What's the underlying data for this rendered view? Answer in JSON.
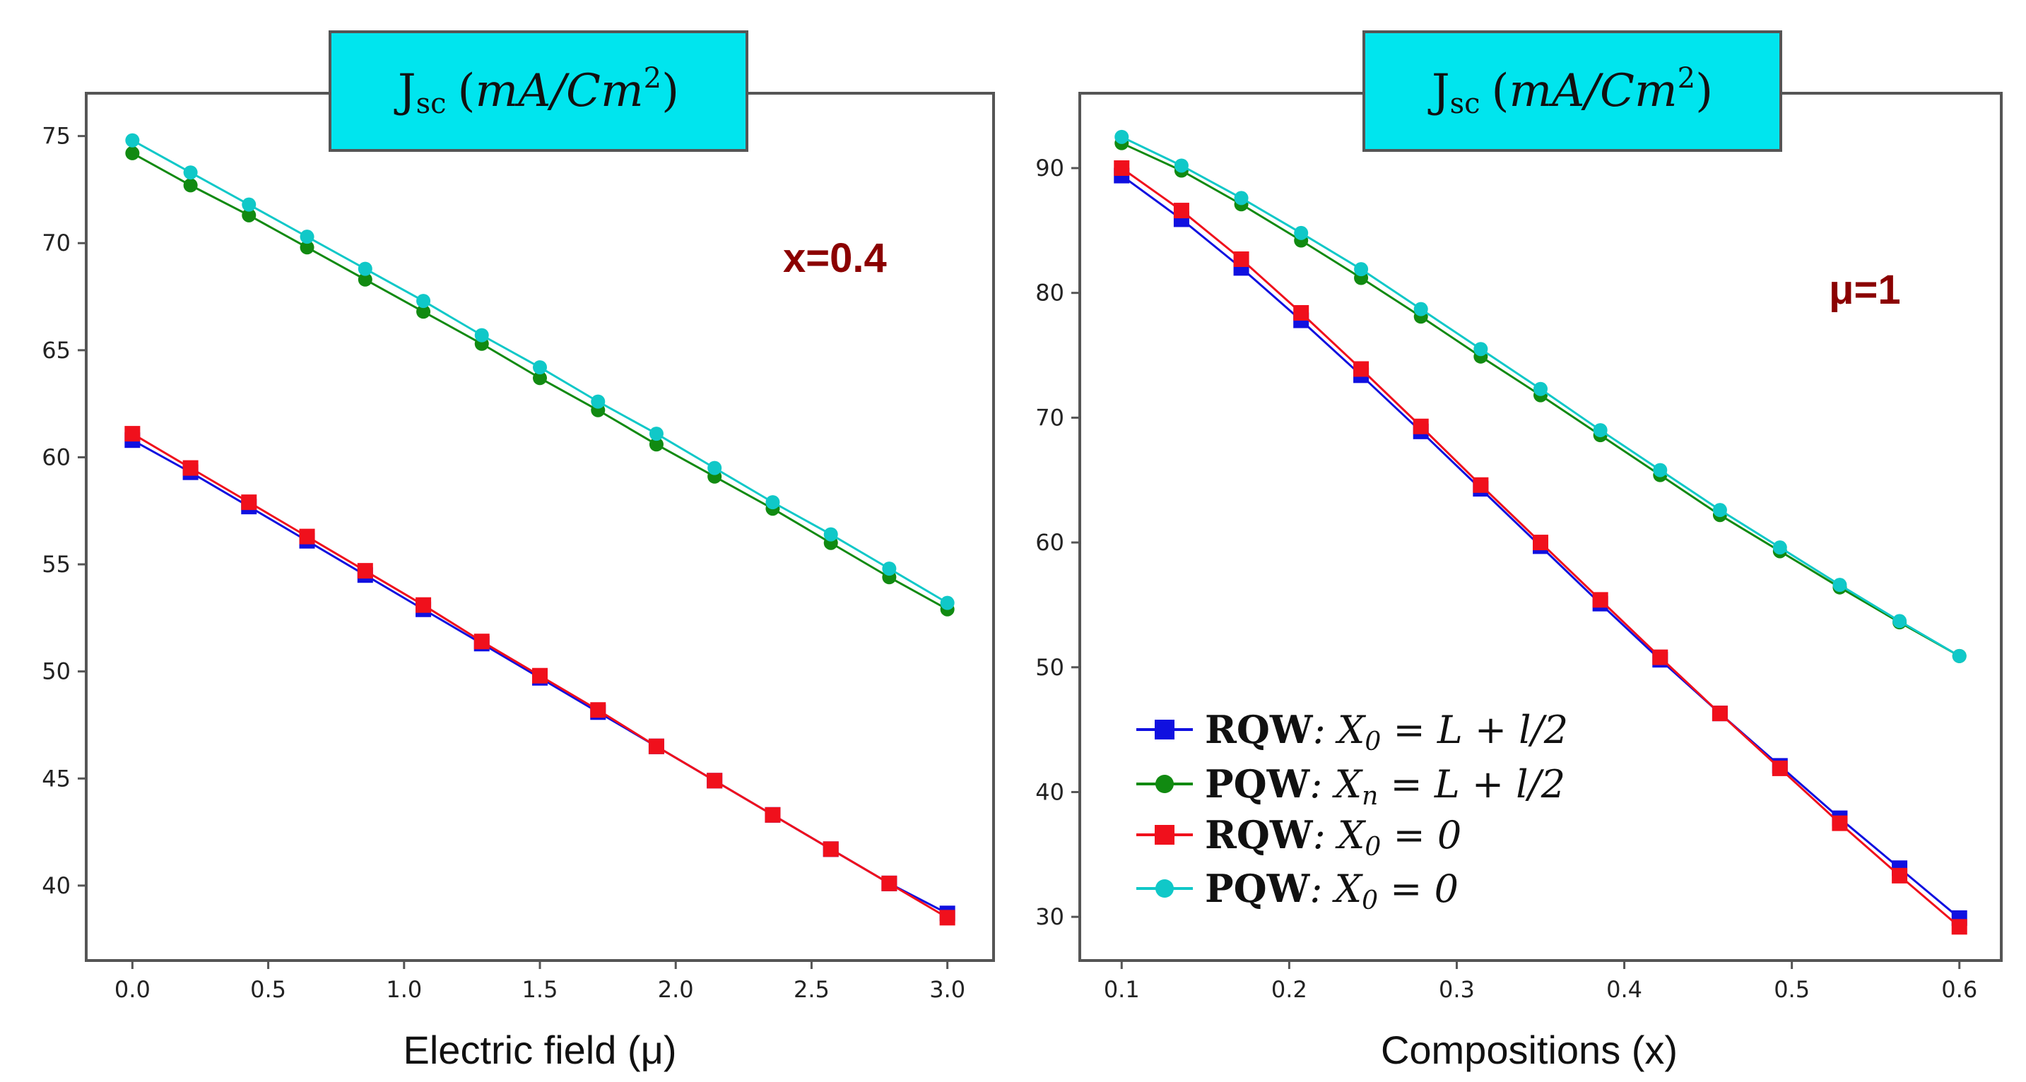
{
  "colors": {
    "rqw_l": "#1010e0",
    "pqw_l": "#118a11",
    "rqw_0": "#f0101c",
    "pqw_0": "#10c8c8",
    "title_box_fill": "#00e5ee",
    "annotation": "#8b0000"
  },
  "legend": [
    {
      "key": "rqw_l",
      "marker": "square",
      "bold": "RQW",
      "formula": ": X",
      "sub": "0",
      "rest": " = L + l/2"
    },
    {
      "key": "pqw_l",
      "marker": "circle",
      "bold": "PQW",
      "formula": ": X",
      "sub": "n",
      "rest": " = L + l/2"
    },
    {
      "key": "rqw_0",
      "marker": "square",
      "bold": "RQW",
      "formula": ": X",
      "sub": "0",
      "rest": " = 0"
    },
    {
      "key": "pqw_0",
      "marker": "circle",
      "bold": "PQW",
      "formula": ": X",
      "sub": "0",
      "rest": " = 0"
    }
  ],
  "chart_data": [
    {
      "type": "line",
      "title": {
        "main": "J",
        "sub": "sc",
        "unit_open": "(",
        "unit": "mA/Cm",
        "sup": "2",
        "unit_close": ")"
      },
      "xlabel": "Electric field (μ)",
      "ylabel": "",
      "annotation": "x=0.4",
      "xlim": [
        -0.17,
        3.17
      ],
      "ylim": [
        36.5,
        77
      ],
      "xticks": [
        0.0,
        0.5,
        1.0,
        1.5,
        2.0,
        2.5,
        3.0
      ],
      "xtick_labels": [
        "0.0",
        "0.5",
        "1.0",
        "1.5",
        "2.0",
        "2.5",
        "3.0"
      ],
      "yticks": [
        40,
        45,
        50,
        55,
        60,
        65,
        70,
        75
      ],
      "ytick_labels": [
        "40",
        "45",
        "50",
        "55",
        "60",
        "65",
        "70",
        "75"
      ],
      "x": [
        0.0,
        0.214,
        0.429,
        0.643,
        0.857,
        1.071,
        1.286,
        1.5,
        1.714,
        1.929,
        2.143,
        2.357,
        2.571,
        2.786,
        3.0
      ],
      "series": [
        {
          "name": "RQW: X0 = L + l/2",
          "key": "rqw_l",
          "marker": "square",
          "values": [
            60.8,
            59.3,
            57.7,
            56.1,
            54.5,
            52.9,
            51.3,
            49.7,
            48.1,
            46.5,
            44.9,
            43.3,
            41.7,
            40.1,
            38.7
          ]
        },
        {
          "name": "PQW: Xn = L + l/2",
          "key": "pqw_l",
          "marker": "circle",
          "values": [
            74.2,
            72.7,
            71.3,
            69.8,
            68.3,
            66.8,
            65.3,
            63.7,
            62.2,
            60.6,
            59.1,
            57.6,
            56.0,
            54.4,
            52.9
          ]
        },
        {
          "name": "RQW: X0 = 0",
          "key": "rqw_0",
          "marker": "square",
          "values": [
            61.1,
            59.5,
            57.9,
            56.3,
            54.7,
            53.1,
            51.4,
            49.8,
            48.2,
            46.5,
            44.9,
            43.3,
            41.7,
            40.1,
            38.5
          ]
        },
        {
          "name": "PQW: X0 = 0",
          "key": "pqw_0",
          "marker": "circle",
          "values": [
            74.8,
            73.3,
            71.8,
            70.3,
            68.8,
            67.3,
            65.7,
            64.2,
            62.6,
            61.1,
            59.5,
            57.9,
            56.4,
            54.8,
            53.2
          ]
        }
      ]
    },
    {
      "type": "line",
      "title": {
        "main": "J",
        "sub": "sc",
        "unit_open": "(",
        "unit": "mA/Cm",
        "sup": "2",
        "unit_close": ")"
      },
      "xlabel": "Compositions (x)",
      "ylabel": "",
      "annotation": "μ=1",
      "xlim": [
        0.075,
        0.625
      ],
      "ylim": [
        26.5,
        96
      ],
      "xticks": [
        0.1,
        0.2,
        0.3,
        0.4,
        0.5,
        0.6
      ],
      "xtick_labels": [
        "0.1",
        "0.2",
        "0.3",
        "0.4",
        "0.5",
        "0.6"
      ],
      "yticks": [
        30,
        40,
        50,
        60,
        70,
        80,
        90
      ],
      "ytick_labels": [
        "30",
        "40",
        "50",
        "60",
        "70",
        "80",
        "90"
      ],
      "x": [
        0.1,
        0.1357,
        0.1714,
        0.2071,
        0.2429,
        0.2786,
        0.3143,
        0.35,
        0.3857,
        0.4214,
        0.4571,
        0.4929,
        0.5286,
        0.5643,
        0.6
      ],
      "series": [
        {
          "name": "RQW: X0 = L + l/2",
          "key": "rqw_l",
          "marker": "square",
          "values": [
            89.4,
            85.9,
            82.0,
            77.8,
            73.4,
            68.9,
            64.3,
            59.7,
            55.1,
            50.6,
            46.3,
            42.1,
            37.9,
            33.9,
            29.9
          ]
        },
        {
          "name": "PQW: Xn = L + l/2",
          "key": "pqw_l",
          "marker": "circle",
          "values": [
            92.0,
            89.8,
            87.1,
            84.2,
            81.2,
            78.1,
            74.9,
            71.8,
            68.6,
            65.4,
            62.2,
            59.3,
            56.4,
            53.6,
            50.9
          ]
        },
        {
          "name": "RQW: X0 = 0",
          "key": "rqw_0",
          "marker": "square",
          "values": [
            90.0,
            86.6,
            82.7,
            78.4,
            73.9,
            69.3,
            64.6,
            60.0,
            55.4,
            50.8,
            46.3,
            41.9,
            37.5,
            33.3,
            29.2
          ]
        },
        {
          "name": "PQW: X0 = 0",
          "key": "pqw_0",
          "marker": "circle",
          "values": [
            92.5,
            90.2,
            87.6,
            84.8,
            81.9,
            78.7,
            75.5,
            72.3,
            69.0,
            65.8,
            62.6,
            59.6,
            56.6,
            53.7,
            50.9
          ]
        }
      ]
    }
  ]
}
